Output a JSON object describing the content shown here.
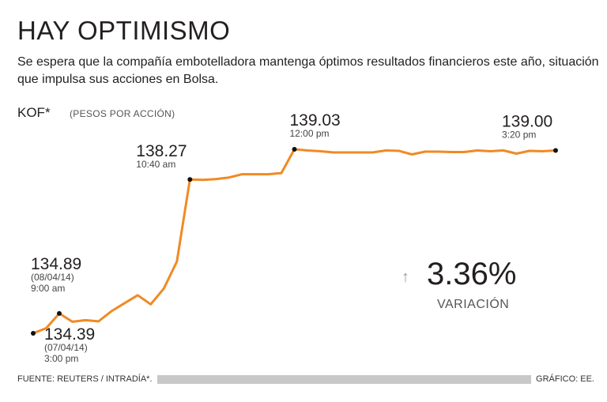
{
  "header": {
    "title": "HAY OPTIMISMO",
    "subtitle": "Se espera que la compañía embotelladora mantenga óptimos resultados financieros este año, situación que impulsa sus acciones en Bolsa."
  },
  "ticker": "KOF*",
  "unit": "(PESOS POR ACCIÓN)",
  "variation": {
    "arrow_icon": "arrow-up-icon",
    "value": "3.36%",
    "label": "VARIACIÓN"
  },
  "footer": {
    "source": "FUENTE: REUTERS / INTRADÍA*.",
    "credit": "GRÁFICO: EE."
  },
  "chart_data": {
    "type": "line",
    "line_color": "#f08a24",
    "ylim": [
      133.8,
      139.6
    ],
    "series": [
      {
        "values": [
          134.39,
          134.52,
          134.89,
          134.68,
          134.72,
          134.69,
          134.95,
          135.15,
          135.35,
          135.12,
          135.52,
          136.2,
          138.27,
          138.26,
          138.28,
          138.32,
          138.4,
          138.4,
          138.4,
          138.43,
          139.03,
          139.0,
          138.98,
          138.95,
          138.95,
          138.95,
          138.95,
          139.0,
          138.99,
          138.9,
          138.97,
          138.97,
          138.96,
          138.96,
          139.0,
          138.98,
          139.0,
          138.92,
          138.99,
          138.98,
          139.0
        ]
      }
    ],
    "annotations": [
      {
        "index": 0,
        "value": "134.39",
        "lines": [
          "(07/04/14)",
          "3:00 pm"
        ]
      },
      {
        "index": 2,
        "value": "134.89",
        "lines": [
          "(08/04/14)",
          "9:00 am"
        ]
      },
      {
        "index": 12,
        "value": "138.27",
        "lines": [
          "10:40 am"
        ]
      },
      {
        "index": 20,
        "value": "139.03",
        "lines": [
          "12:00 pm"
        ]
      },
      {
        "index": 40,
        "value": "139.00",
        "lines": [
          "3:20 pm"
        ]
      }
    ]
  }
}
